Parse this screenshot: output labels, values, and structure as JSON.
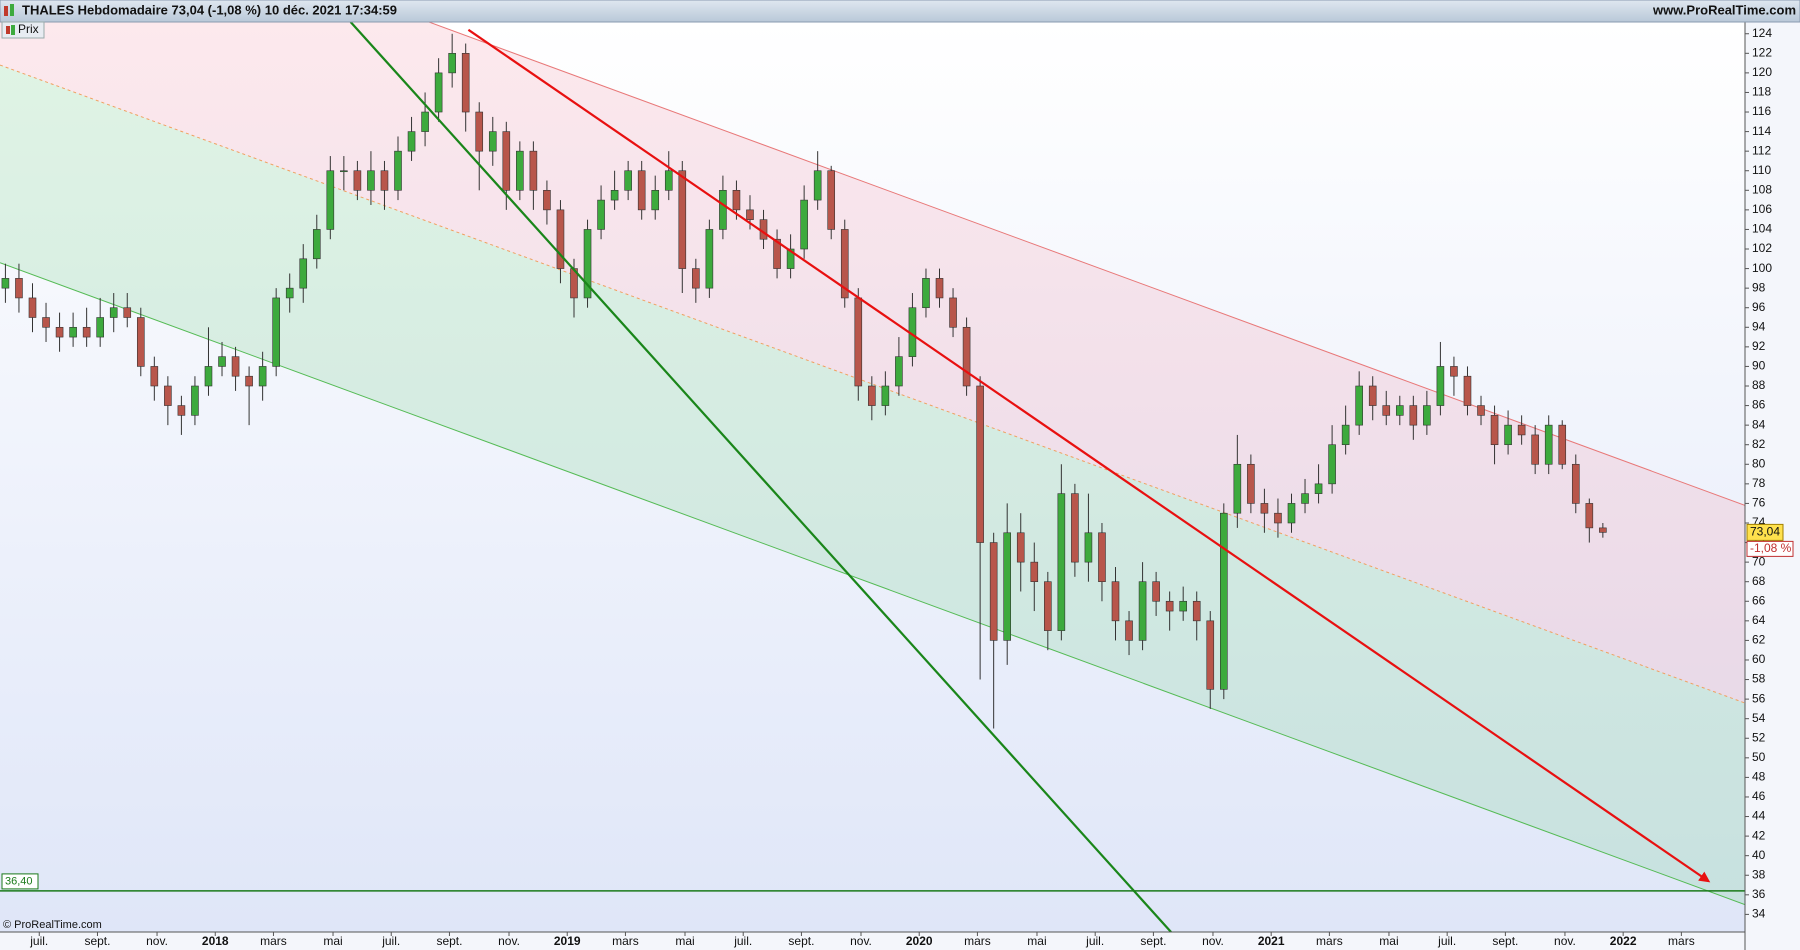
{
  "chart_data": {
    "type": "candlestick",
    "title": "THALES Hebdomadaire 73,04 (-1,08 %) 10 déc. 2021 17:34:59",
    "source": "www.ProRealTime.com",
    "copyright": "© ProRealTime.com",
    "xlim": [
      -0.4,
      128.5
    ],
    "ylim": [
      32.2,
      125.2
    ],
    "yticks": [
      34,
      36,
      38,
      40,
      42,
      44,
      46,
      48,
      50,
      52,
      54,
      56,
      58,
      60,
      62,
      64,
      66,
      68,
      70,
      72,
      74,
      76,
      78,
      80,
      82,
      84,
      86,
      88,
      90,
      92,
      94,
      96,
      98,
      100,
      102,
      104,
      106,
      108,
      110,
      112,
      114,
      116,
      118,
      120,
      122,
      124
    ],
    "xticks": [
      {
        "value": 2.5,
        "label": "juil."
      },
      {
        "value": 6.8,
        "label": "sept."
      },
      {
        "value": 11.2,
        "label": "nov."
      },
      {
        "value": 15.5,
        "label": "2018"
      },
      {
        "value": 19.8,
        "label": "mars"
      },
      {
        "value": 24.2,
        "label": "mai"
      },
      {
        "value": 28.5,
        "label": "juil."
      },
      {
        "value": 32.8,
        "label": "sept."
      },
      {
        "value": 37.2,
        "label": "nov."
      },
      {
        "value": 41.5,
        "label": "2019"
      },
      {
        "value": 45.8,
        "label": "mars"
      },
      {
        "value": 50.2,
        "label": "mai"
      },
      {
        "value": 54.5,
        "label": "juil."
      },
      {
        "value": 58.8,
        "label": "sept."
      },
      {
        "value": 63.2,
        "label": "nov."
      },
      {
        "value": 67.5,
        "label": "2020"
      },
      {
        "value": 71.8,
        "label": "mars"
      },
      {
        "value": 76.2,
        "label": "mai"
      },
      {
        "value": 80.5,
        "label": "juil."
      },
      {
        "value": 84.8,
        "label": "sept."
      },
      {
        "value": 89.2,
        "label": "nov."
      },
      {
        "value": 93.5,
        "label": "2021"
      },
      {
        "value": 97.8,
        "label": "mars"
      },
      {
        "value": 102.2,
        "label": "mai"
      },
      {
        "value": 106.5,
        "label": "juil."
      },
      {
        "value": 110.8,
        "label": "sept."
      },
      {
        "value": 115.2,
        "label": "nov."
      },
      {
        "value": 119.5,
        "label": "2022"
      },
      {
        "value": 123.8,
        "label": "mars"
      }
    ],
    "series": [
      {
        "name": "Prix",
        "up_color": "#3daa3d",
        "down_color": "#b8564b",
        "open": [
          98,
          99,
          97,
          95,
          94,
          93,
          94,
          93,
          95,
          96,
          95,
          90,
          88,
          86,
          85,
          88,
          90,
          91,
          89,
          88,
          90,
          97,
          98,
          101,
          104,
          110,
          110,
          108,
          110,
          108,
          112,
          114,
          116,
          120,
          122,
          116,
          112,
          114,
          108,
          112,
          108,
          106,
          100,
          97,
          104,
          107,
          108,
          110,
          106,
          108,
          110,
          100,
          98,
          104,
          108,
          106,
          105,
          103,
          100,
          102,
          107,
          110,
          104,
          97,
          88,
          86,
          88,
          91,
          96,
          99,
          97,
          94,
          88,
          72,
          62,
          73,
          70,
          68,
          63,
          77,
          70,
          73,
          68,
          64,
          62,
          68,
          66,
          65,
          66,
          64,
          57,
          75,
          80,
          76,
          75,
          74,
          76,
          77,
          78,
          82,
          84,
          88,
          86,
          85,
          86,
          84,
          86,
          90,
          89,
          86,
          85,
          82,
          84,
          83,
          80,
          84,
          80,
          76,
          73.5
        ],
        "high": [
          100.5,
          100.5,
          98.5,
          96.5,
          95.5,
          95.5,
          96,
          97,
          97.5,
          97.5,
          96,
          91,
          89,
          87,
          89,
          94,
          92.5,
          92,
          90,
          91.5,
          98,
          99.5,
          102.5,
          105.5,
          111.5,
          111.5,
          111,
          112,
          111,
          113.5,
          115.5,
          118,
          121.5,
          124,
          123,
          117,
          115.5,
          115,
          113,
          113,
          109,
          107,
          101,
          105,
          108.5,
          110,
          111,
          111,
          109.5,
          112,
          111,
          101,
          105,
          109.5,
          109,
          107.5,
          106,
          104,
          103.5,
          108.5,
          112,
          110.5,
          105,
          98,
          89,
          89.5,
          93,
          97.5,
          100,
          100,
          98,
          95,
          89,
          73,
          76,
          75,
          72,
          69,
          80,
          78,
          77,
          74,
          69.5,
          65,
          70,
          69,
          67,
          67.5,
          67,
          65,
          76,
          83,
          81,
          77.5,
          76.5,
          77,
          78.5,
          80,
          84,
          86,
          89.5,
          89,
          87.5,
          87,
          87,
          87.5,
          92.5,
          91,
          90,
          87,
          86,
          85.5,
          85,
          84,
          85,
          84.5,
          81,
          76.5,
          74
        ],
        "low": [
          96.5,
          95.5,
          93.5,
          92.5,
          91.5,
          92,
          92,
          92,
          93.5,
          94,
          89,
          86.5,
          84,
          83,
          84,
          87,
          89,
          87.5,
          84,
          86.5,
          89,
          95.5,
          96.5,
          100,
          103,
          108,
          107,
          106.5,
          106,
          107,
          111,
          112.5,
          115,
          118.5,
          114,
          108,
          110.5,
          106,
          107,
          106,
          104.5,
          98.5,
          95,
          96,
          103,
          106,
          107,
          105,
          105,
          107,
          97.5,
          96.5,
          97,
          103,
          105,
          104,
          102,
          99,
          99,
          101,
          106,
          103,
          96,
          86.5,
          84.5,
          85,
          87,
          90,
          95,
          96,
          93,
          87,
          58,
          53,
          59.5,
          67,
          65,
          61,
          62,
          68.5,
          68,
          66,
          62,
          60.5,
          61,
          64.5,
          63,
          64,
          62,
          55,
          56,
          73.5,
          75,
          73,
          72.5,
          73,
          75,
          76,
          77,
          81,
          83,
          84.5,
          84,
          84,
          82.5,
          83,
          85,
          87,
          85,
          84,
          80,
          81,
          82,
          79,
          79,
          79.5,
          75,
          72,
          72.5
        ],
        "close": [
          99,
          97,
          95,
          94,
          93,
          94,
          93,
          95,
          96,
          95,
          90,
          88,
          86,
          85,
          88,
          90,
          91,
          89,
          88,
          90,
          97,
          98,
          101,
          104,
          110,
          110,
          108,
          110,
          108,
          112,
          114,
          116,
          120,
          122,
          116,
          112,
          114,
          108,
          112,
          108,
          106,
          100,
          97,
          104,
          107,
          108,
          110,
          106,
          108,
          110,
          100,
          98,
          104,
          108,
          106,
          105,
          103,
          100,
          102,
          107,
          110,
          104,
          97,
          88,
          86,
          88,
          91,
          96,
          99,
          97,
          94,
          88,
          72,
          62,
          73,
          70,
          68,
          63,
          77,
          70,
          73,
          68,
          64,
          62,
          68,
          66,
          65,
          66,
          64,
          57,
          75,
          80,
          76,
          75,
          74,
          76,
          77,
          78,
          82,
          84,
          88,
          86,
          85,
          86,
          84,
          86,
          90,
          89,
          86,
          85,
          82,
          84,
          83,
          80,
          84,
          80,
          76,
          73.5,
          73.04
        ]
      }
    ],
    "last_price": {
      "value": 73.04,
      "label": "73,04"
    },
    "change": {
      "value": -1.08,
      "label": "-1,08 %"
    },
    "level": {
      "value": 36.4,
      "label": "36,40",
      "color": "#1a7a1a"
    },
    "channel": {
      "upper": {
        "x": [
          -0.4,
          128.5
        ],
        "y": [
          141.3,
          75.8
        ],
        "color": "#e87878"
      },
      "middle": {
        "x": [
          -0.4,
          128.5
        ],
        "y": [
          120.8,
          55.6
        ],
        "color": "#f0a060"
      },
      "lower": {
        "x": [
          -0.4,
          128.5
        ],
        "y": [
          100.6,
          35.0
        ],
        "color": "#55bb55"
      }
    },
    "trendlines": [
      {
        "x": [
          34.2,
          125.8
        ],
        "y": [
          124.4,
          37.4
        ],
        "color": "#e81010",
        "arrow": true
      },
      {
        "x": [
          25.5,
          86.1
        ],
        "y": [
          125.2,
          32.2
        ],
        "color": "#1a861a",
        "arrow": false
      }
    ]
  }
}
